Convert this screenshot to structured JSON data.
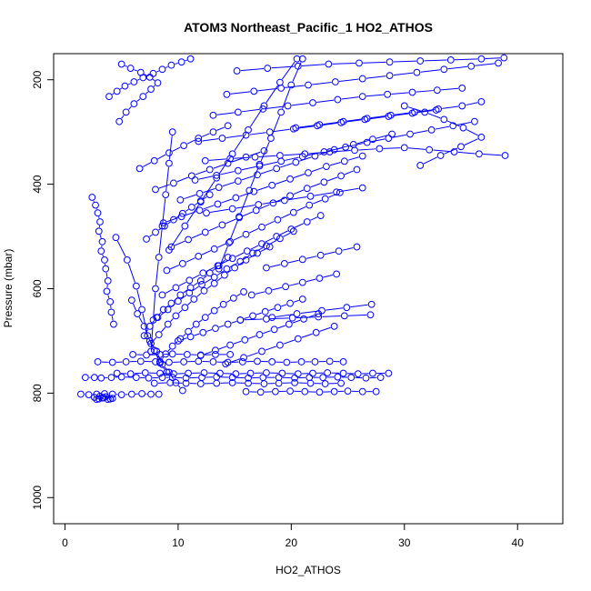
{
  "chart_data": {
    "type": "scatter",
    "title": "ATOM3 Northeast_Pacific_1 HO2_ATHOS",
    "xlabel": "HO2_ATHOS",
    "ylabel": "Pressure (mbar)",
    "xlim": [
      -1,
      44
    ],
    "ylim": [
      1050,
      150
    ],
    "y_reversed": true,
    "x_ticks": [
      0,
      10,
      20,
      30,
      40
    ],
    "x_tick_labels": [
      "0",
      "10",
      "20",
      "30",
      "40"
    ],
    "y_ticks": [
      200,
      400,
      600,
      800,
      1000
    ],
    "y_tick_labels": [
      "200",
      "400",
      "600",
      "800",
      "1000"
    ],
    "grid": false,
    "series_color": "#0000ff",
    "marker": "open-circle",
    "connected": true,
    "series": [
      {
        "x": [
          1.8,
          2.6,
          3.2,
          4.1,
          5.0,
          6.3,
          7.4,
          8.6,
          9.5,
          10.7,
          12.1,
          13.4,
          14.8,
          16.2,
          17.5,
          18.9,
          20.3,
          21.6,
          22.8,
          24.1,
          25.3,
          26.6,
          27.9
        ],
        "y": [
          770,
          770,
          771,
          770,
          769,
          770,
          771,
          770,
          770,
          771,
          770,
          769,
          770,
          771,
          770,
          770,
          771,
          770,
          770,
          769,
          770,
          771,
          770
        ]
      },
      {
        "x": [
          4.6,
          5.8,
          7.1,
          8.4,
          9.6,
          10.9,
          12.3,
          13.7,
          15.1,
          16.4,
          17.8,
          19.2,
          20.6,
          21.9,
          23.2,
          24.6,
          25.9,
          27.2,
          28.6
        ],
        "y": [
          762,
          763,
          761,
          762,
          763,
          762,
          761,
          762,
          763,
          762,
          761,
          762,
          763,
          762,
          761,
          762,
          763,
          762,
          762
        ]
      },
      {
        "x": [
          2.9,
          4.2,
          5.4,
          6.7,
          8.0,
          9.2,
          10.5,
          11.8,
          13.1,
          14.4,
          15.7,
          17.0,
          18.3,
          19.6,
          20.9,
          22.1,
          23.4,
          24.6
        ],
        "y": [
          740,
          741,
          740,
          739,
          740,
          741,
          740,
          739,
          740,
          741,
          740,
          739,
          740,
          741,
          740,
          740,
          739,
          740
        ]
      },
      {
        "x": [
          6.0,
          7.2,
          8.4,
          9.5,
          10.8,
          12.0,
          13.3,
          14.6
        ],
        "y": [
          726,
          727,
          726,
          725,
          726,
          727,
          726,
          726
        ]
      },
      {
        "x": [
          7.9,
          9.3,
          10.7,
          12.0,
          13.4,
          14.8,
          16.2,
          17.6,
          18.9,
          20.3,
          21.7,
          23.0,
          24.4
        ],
        "y": [
          781,
          780,
          781,
          782,
          781,
          780,
          781,
          782,
          781,
          780,
          781,
          782,
          781
        ]
      },
      {
        "x": [
          16.0,
          17.3,
          18.6,
          19.9,
          21.2,
          22.5,
          23.8,
          25.0,
          26.3,
          27.5
        ],
        "y": [
          797,
          798,
          797,
          796,
          797,
          798,
          797,
          796,
          797,
          797
        ]
      },
      {
        "x": [
          1.4,
          2.1,
          2.8,
          3.5,
          4.2,
          5.0,
          5.9,
          6.8,
          7.6,
          8.3
        ],
        "y": [
          802,
          803,
          802,
          801,
          802,
          803,
          802,
          801,
          802,
          802
        ]
      },
      {
        "x": [
          2.6,
          3.0,
          3.4,
          3.8,
          4.2,
          3.1,
          2.8,
          3.6,
          4.0,
          3.3
        ],
        "y": [
          808,
          811,
          809,
          812,
          810,
          806,
          812,
          807,
          811,
          809
        ]
      },
      {
        "x": [
          2.4,
          2.7,
          2.9,
          3.1,
          3.0,
          3.3,
          3.2,
          3.5,
          3.6,
          3.8,
          3.7,
          4.0,
          4.1,
          4.3
        ],
        "y": [
          425,
          440,
          455,
          472,
          490,
          510,
          528,
          545,
          562,
          585,
          605,
          625,
          645,
          668
        ]
      },
      {
        "x": [
          7.0,
          7.5,
          8.1,
          8.7,
          9.4,
          10.2,
          11.1,
          12.0,
          12.8,
          13.6,
          14.4
        ],
        "y": [
          690,
          672,
          655,
          640,
          628,
          612,
          598,
          585,
          570,
          556,
          540
        ]
      },
      {
        "x": [
          7.6,
          8.3,
          9.1,
          9.8,
          10.6,
          11.4,
          12.3,
          13.2,
          14.1,
          15.0,
          16.0,
          17.0,
          18.1
        ],
        "y": [
          705,
          688,
          668,
          652,
          636,
          620,
          604,
          590,
          574,
          560,
          545,
          532,
          520
        ]
      },
      {
        "x": [
          8.2,
          9.1,
          10.0,
          11.0,
          12.1,
          13.2,
          14.3,
          15.5,
          16.6,
          17.8,
          19.0,
          20.2
        ],
        "y": [
          655,
          640,
          624,
          608,
          592,
          578,
          562,
          548,
          532,
          518,
          504,
          490
        ]
      },
      {
        "x": [
          8.6,
          9.8,
          11.0,
          12.2,
          13.5,
          14.8,
          16.1,
          17.4,
          18.7,
          20.0,
          21.4,
          22.6
        ],
        "y": [
          612,
          598,
          584,
          570,
          556,
          542,
          528,
          514,
          500,
          486,
          472,
          460
        ]
      },
      {
        "x": [
          9.0,
          10.4,
          11.8,
          13.2,
          14.6,
          16.0,
          17.4,
          18.8,
          20.2,
          21.6,
          23.0,
          24.3
        ],
        "y": [
          565,
          552,
          538,
          524,
          510,
          496,
          482,
          468,
          454,
          440,
          428,
          416
        ]
      },
      {
        "x": [
          9.4,
          10.9,
          12.4,
          13.9,
          15.4,
          16.9,
          18.4,
          19.9,
          21.4,
          22.9,
          24.4,
          25.8
        ],
        "y": [
          520,
          506,
          492,
          478,
          464,
          450,
          436,
          422,
          408,
          396,
          384,
          372
        ]
      },
      {
        "x": [
          8.7,
          10.3,
          11.9,
          13.5,
          15.1,
          16.7,
          18.3,
          19.9,
          21.5,
          23.1,
          24.7,
          26.3
        ],
        "y": [
          474,
          462,
          450,
          438,
          426,
          414,
          402,
          390,
          378,
          366,
          356,
          346
        ]
      },
      {
        "x": [
          10.2,
          11.9,
          13.6,
          15.3,
          17.0,
          18.7,
          20.4,
          22.1,
          23.8,
          25.5,
          27.2,
          28.9
        ],
        "y": [
          430,
          418,
          406,
          394,
          382,
          370,
          358,
          346,
          334,
          324,
          314,
          304
        ]
      },
      {
        "x": [
          11.5,
          13.4,
          15.3,
          17.2,
          19.1,
          21.0,
          22.9,
          24.8,
          26.7,
          28.6,
          30.5,
          32.4,
          34.3,
          36.2
        ],
        "y": [
          392,
          383,
          374,
          365,
          356,
          347,
          338,
          329,
          320,
          312,
          304,
          296,
          288,
          280
        ]
      },
      {
        "x": [
          12.4,
          14.6,
          16.8,
          19.0,
          21.2,
          23.4,
          25.6,
          27.8,
          30.0,
          32.2,
          34.4,
          36.6,
          38.9
        ],
        "y": [
          355,
          351,
          348,
          345,
          342,
          338,
          335,
          332,
          330,
          334,
          338,
          342,
          345
        ]
      },
      {
        "x": [
          30.0,
          31.8,
          33.5,
          35.2,
          36.8,
          35.0,
          33.2,
          31.4
        ],
        "y": [
          250,
          262,
          276,
          292,
          310,
          328,
          345,
          364
        ]
      },
      {
        "x": [
          20.4,
          22.5,
          24.6,
          26.7,
          28.8,
          30.9,
          33.0,
          35.1,
          36.8
        ],
        "y": [
          292,
          286,
          280,
          274,
          268,
          262,
          256,
          250,
          242
        ]
      },
      {
        "x": [
          11.8,
          13.9,
          16.0,
          18.1,
          20.2,
          22.3,
          24.4,
          26.5,
          28.6,
          30.7,
          32.8
        ],
        "y": [
          318,
          312,
          306,
          300,
          294,
          288,
          282,
          276,
          270,
          264,
          258
        ]
      },
      {
        "x": [
          13.1,
          15.3,
          17.5,
          19.7,
          21.9,
          24.1,
          26.3,
          28.5,
          30.7,
          32.9,
          35.1
        ],
        "y": [
          268,
          262,
          256,
          250,
          244,
          238,
          232,
          228,
          224,
          220,
          216
        ]
      },
      {
        "x": [
          14.3,
          16.7,
          19.1,
          21.5,
          23.9,
          26.3,
          28.7,
          31.1,
          33.5,
          35.9,
          38.3
        ],
        "y": [
          228,
          222,
          216,
          210,
          204,
          198,
          192,
          186,
          180,
          174,
          168
        ]
      },
      {
        "x": [
          15.2,
          17.9,
          20.6,
          23.3,
          26.0,
          28.7,
          31.4,
          34.1,
          36.8,
          38.8
        ],
        "y": [
          183,
          178,
          174,
          170,
          168,
          166,
          164,
          162,
          160,
          158
        ]
      },
      {
        "x": [
          5.0,
          5.8,
          6.7,
          7.5,
          8.2,
          7.6,
          6.9,
          6.1,
          5.4,
          4.8
        ],
        "y": [
          170,
          178,
          186,
          195,
          206,
          218,
          232,
          246,
          262,
          280
        ]
      },
      {
        "x": [
          3.9,
          4.6,
          5.3,
          6.1,
          6.9,
          7.8,
          8.6,
          9.4,
          10.3,
          11.1
        ],
        "y": [
          232,
          222,
          212,
          204,
          196,
          188,
          180,
          172,
          166,
          160
        ]
      },
      {
        "x": [
          6.6,
          7.9,
          9.2,
          10.5,
          11.8,
          13.1,
          14.4
        ],
        "y": [
          370,
          355,
          340,
          326,
          312,
          300,
          288
        ]
      },
      {
        "x": [
          8.0,
          9.6,
          11.2,
          12.8,
          14.4,
          16.0,
          17.6
        ],
        "y": [
          410,
          398,
          384,
          372,
          360,
          348,
          336
        ]
      },
      {
        "x": [
          7.2,
          8.0,
          8.8,
          9.6,
          10.4,
          11.2,
          12.0,
          12.8
        ],
        "y": [
          505,
          492,
          480,
          468,
          456,
          444,
          432,
          420
        ]
      },
      {
        "x": [
          4.5,
          5.5,
          6.3,
          6.8,
          7.3,
          7.9,
          8.4,
          9.0
        ],
        "y": [
          502,
          545,
          595,
          640,
          690,
          718,
          742,
          760
        ]
      },
      {
        "x": [
          5.9,
          6.4,
          7.0,
          7.5,
          8.1,
          8.6,
          9.2,
          9.8,
          10.4
        ],
        "y": [
          622,
          648,
          672,
          700,
          720,
          745,
          760,
          780,
          795
        ]
      },
      {
        "x": [
          8.4,
          8.9,
          9.5,
          10.2,
          10.9,
          11.6,
          12.4,
          13.2,
          14.0,
          14.9,
          15.8
        ],
        "y": [
          740,
          725,
          710,
          696,
          682,
          668,
          655,
          642,
          630,
          618,
          606
        ]
      },
      {
        "x": [
          10.0,
          11.1,
          12.2,
          13.3,
          14.4,
          15.5,
          16.6,
          17.7,
          18.8,
          19.9,
          21.0
        ],
        "y": [
          700,
          692,
          684,
          676,
          668,
          660,
          652,
          644,
          636,
          628,
          620
        ]
      },
      {
        "x": [
          12.0,
          13.3,
          14.6,
          15.9,
          17.2,
          18.5,
          19.8,
          21.1,
          22.4
        ],
        "y": [
          728,
          718,
          708,
          698,
          688,
          678,
          668,
          658,
          648
        ]
      },
      {
        "x": [
          14.2,
          15.8,
          17.4,
          19.0,
          20.6,
          22.2,
          23.8
        ],
        "y": [
          744,
          732,
          720,
          708,
          696,
          684,
          672
        ]
      },
      {
        "x": [
          16.5,
          18.0,
          19.5,
          21.0,
          22.5,
          24.0
        ],
        "y": [
          612,
          604,
          596,
          588,
          580,
          572
        ]
      },
      {
        "x": [
          17.8,
          19.4,
          21.0,
          22.6,
          24.2,
          25.8
        ],
        "y": [
          560,
          552,
          544,
          536,
          528,
          520
        ]
      },
      {
        "x": [
          21.0,
          20.0,
          19.1,
          18.2,
          17.2,
          16.3,
          15.4,
          14.5,
          13.6
        ],
        "y": [
          160,
          210,
          262,
          312,
          362,
          412,
          462,
          512,
          562
        ]
      },
      {
        "x": [
          20.5,
          19.0,
          17.6,
          16.2,
          14.8,
          13.4,
          12.0,
          10.6,
          9.2
        ],
        "y": [
          160,
          205,
          250,
          296,
          342,
          388,
          434,
          480,
          526
        ]
      },
      {
        "x": [
          9.5,
          9.2,
          8.9,
          8.6,
          8.3,
          8.0,
          7.8,
          7.6
        ],
        "y": [
          300,
          360,
          420,
          480,
          540,
          600,
          660,
          720
        ]
      },
      {
        "x": [
          12.5,
          14.8,
          17.1,
          19.4,
          21.7,
          24.0,
          26.3
        ],
        "y": [
          455,
          447,
          439,
          431,
          423,
          415,
          407
        ]
      },
      {
        "x": [
          18.3,
          20.5,
          22.7,
          24.9,
          27.1
        ],
        "y": [
          655,
          648,
          642,
          636,
          630
        ]
      },
      {
        "x": [
          15.5,
          17.8,
          20.1,
          22.4,
          24.7,
          27.0
        ],
        "y": [
          660,
          658,
          656,
          654,
          652,
          650
        ]
      }
    ]
  }
}
